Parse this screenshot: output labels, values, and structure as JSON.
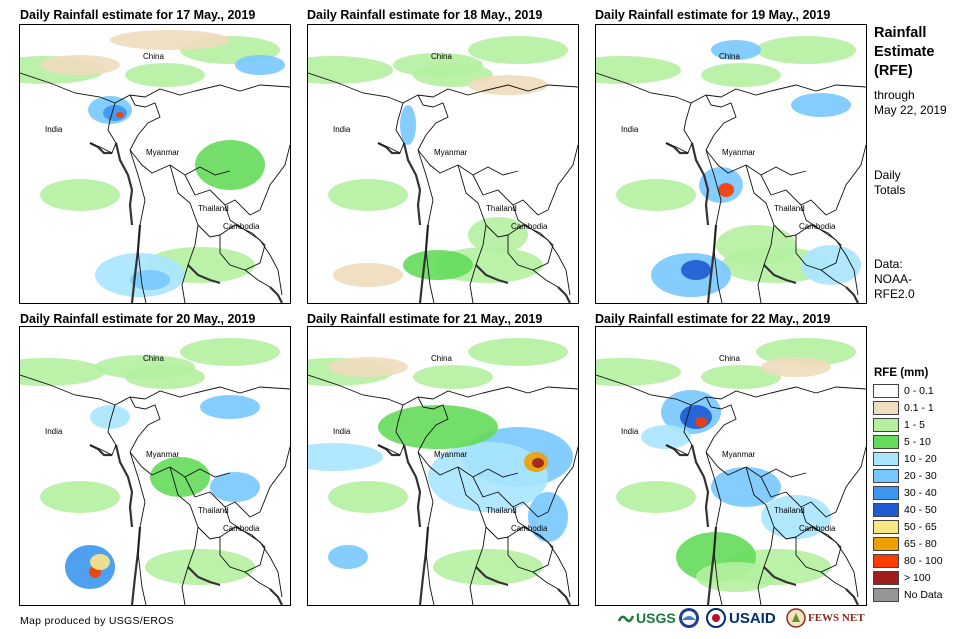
{
  "panels": [
    {
      "title": "Daily Rainfall estimate for 17 May., 2019",
      "labels": {
        "country_1": "China",
        "country_2": "India",
        "country_3": "Myanmar",
        "country_4": "Thailand",
        "country_5": "Cambodia"
      }
    },
    {
      "title": "Daily Rainfall estimate for 18 May., 2019",
      "labels": {
        "country_1": "China",
        "country_2": "India",
        "country_3": "Myanmar",
        "country_4": "Thailand",
        "country_5": "Cambodia"
      }
    },
    {
      "title": "Daily Rainfall estimate for 19 May., 2019",
      "labels": {
        "country_1": "China",
        "country_2": "India",
        "country_3": "Myanmar",
        "country_4": "Thailand",
        "country_5": "Cambodia"
      }
    },
    {
      "title": "Daily Rainfall estimate for 20 May., 2019",
      "labels": {
        "country_1": "China",
        "country_2": "India",
        "country_3": "Myanmar",
        "country_4": "Thailand",
        "country_5": "Cambodia"
      }
    },
    {
      "title": "Daily Rainfall estimate for 21 May., 2019",
      "labels": {
        "country_1": "China",
        "country_2": "India",
        "country_3": "Myanmar",
        "country_4": "Thailand",
        "country_5": "Cambodia"
      }
    },
    {
      "title": "Daily Rainfall estimate for 22 May., 2019",
      "labels": {
        "country_1": "China",
        "country_2": "India",
        "country_3": "Myanmar",
        "country_4": "Thailand",
        "country_5": "Cambodia"
      }
    }
  ],
  "side": {
    "title_1": "Rainfall",
    "title_2": "Estimate",
    "title_3": "(RFE)",
    "through_1": "through",
    "through_2": "May 22, 2019",
    "daily_1": "Daily",
    "daily_2": "Totals",
    "data_1": "Data:",
    "data_2": "NOAA-",
    "data_3": "RFE2.0"
  },
  "legend": {
    "title": "RFE (mm)",
    "items": [
      {
        "label": "0 - 0.1",
        "color": "#ffffff"
      },
      {
        "label": "0.1 - 1",
        "color": "#f0dcbe"
      },
      {
        "label": "1 - 5",
        "color": "#b4f0a0"
      },
      {
        "label": "5 - 10",
        "color": "#64dc5a"
      },
      {
        "label": "10 - 20",
        "color": "#aae6ff"
      },
      {
        "label": "20 - 30",
        "color": "#78c8ff"
      },
      {
        "label": "30 - 40",
        "color": "#3c96f0"
      },
      {
        "label": "40 - 50",
        "color": "#1e5ad2"
      },
      {
        "label": "50 - 65",
        "color": "#fae682"
      },
      {
        "label": "65 - 80",
        "color": "#f0a000"
      },
      {
        "label": "80 - 100",
        "color": "#fa3c00"
      },
      {
        "label": "> 100",
        "color": "#a01e1e"
      },
      {
        "label": "No Data",
        "color": "#969696"
      }
    ]
  },
  "credit": "Map produced by USGS/EROS",
  "logos": {
    "usgs": "USGS",
    "noaa": "NOAA",
    "usaid": "USAID",
    "fewsnet": "FEWS NET"
  }
}
